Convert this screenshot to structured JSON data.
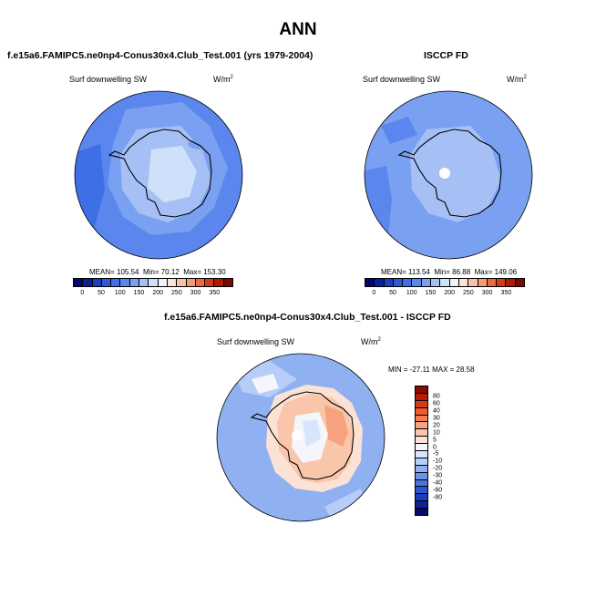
{
  "title": "ANN",
  "panels": {
    "model": {
      "title": "f.e15a6.FAMIPC5.ne0np4-Conus30x4.Club_Test.001 (yrs 1979-2004)",
      "var_label": "Surf downwelling SW",
      "units": "W/m",
      "units_exp": "2",
      "stats": {
        "mean": "MEAN= 105.54",
        "min": "Min=  70.12",
        "max": "Max= 153.30"
      }
    },
    "obs": {
      "title": "ISCCP FD",
      "var_label": "Surf downwelling SW",
      "units": "W/m",
      "units_exp": "2",
      "stats": {
        "mean": "MEAN= 113.54",
        "min": "Min=  86.88",
        "max": "Max= 149.06"
      }
    },
    "diff": {
      "title": "f.e15a6.FAMIPC5.ne0np4-Conus30x4.Club_Test.001 - ISCCP FD",
      "var_label": "Surf downwelling SW",
      "units": "W/m",
      "units_exp": "2",
      "stats": {
        "minmax": "MIN = -27.11  MAX =  28.58"
      }
    }
  },
  "colorbars": {
    "abs": {
      "colors": [
        "#05056e",
        "#0b1ea0",
        "#1b3fc4",
        "#2f5ad8",
        "#3f6fe6",
        "#5a86ee",
        "#7aa0f2",
        "#a6c0f6",
        "#cfe0fa",
        "#eef4fd",
        "#fde3d6",
        "#f9c2a6",
        "#f49a78",
        "#ea6a45",
        "#d43a1c",
        "#ae1b06",
        "#7e0800"
      ],
      "tick_labels": [
        "0",
        "50",
        "100",
        "150",
        "200",
        "250",
        "300",
        "350"
      ],
      "tick_boundary_index": [
        1,
        3,
        5,
        7,
        9,
        11,
        13,
        15
      ]
    },
    "diff": {
      "colors_top_to_bottom": [
        "#8a0b02",
        "#b71a05",
        "#d63b15",
        "#ec5c2e",
        "#f47f55",
        "#f7a27f",
        "#f9c5ab",
        "#fbe2d4",
        "#f4f6fc",
        "#d8e6fb",
        "#b6cdf7",
        "#8fb0f1",
        "#6a92e9",
        "#4a74df",
        "#2e56cf",
        "#1d3cb6",
        "#0f2394",
        "#060a6b"
      ],
      "tick_labels": [
        "80",
        "60",
        "40",
        "30",
        "20",
        "10",
        "5",
        "0",
        "-5",
        "-10",
        "-20",
        "-30",
        "-40",
        "-60",
        "-80"
      ]
    }
  },
  "colors": {
    "ocean_model": "#5a86ee",
    "ocean_model_light": "#7aa0f2",
    "ocean_model_dark": "#3f6fe6",
    "land_model": "#a6c0f6",
    "land_model_light": "#cfe0fa",
    "ocean_obs": "#7aa0f2",
    "ocean_obs_dark": "#5a86ee",
    "land_obs": "#a6c0f6",
    "diff_bg": "#8fb0f1",
    "diff_light": "#b6cdf7",
    "diff_pos1": "#fbe2d4",
    "diff_pos2": "#f9c5ab",
    "diff_pos3": "#f7a27f",
    "diff_white": "#f4f6fc"
  }
}
